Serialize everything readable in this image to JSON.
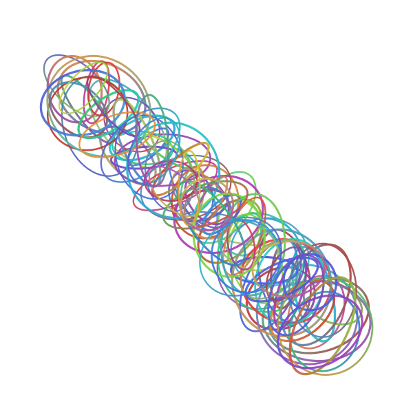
{
  "artwork": {
    "subject": "tangled-loops",
    "background_color": "#ffffff",
    "palette": [
      "#e0403f",
      "#c0392b",
      "#8e44ad",
      "#b03ab8",
      "#5b4fd6",
      "#3f6be0",
      "#2fa0d8",
      "#28c7c0",
      "#33c46a",
      "#7fd23c",
      "#c9d23a",
      "#e58f3a"
    ]
  }
}
